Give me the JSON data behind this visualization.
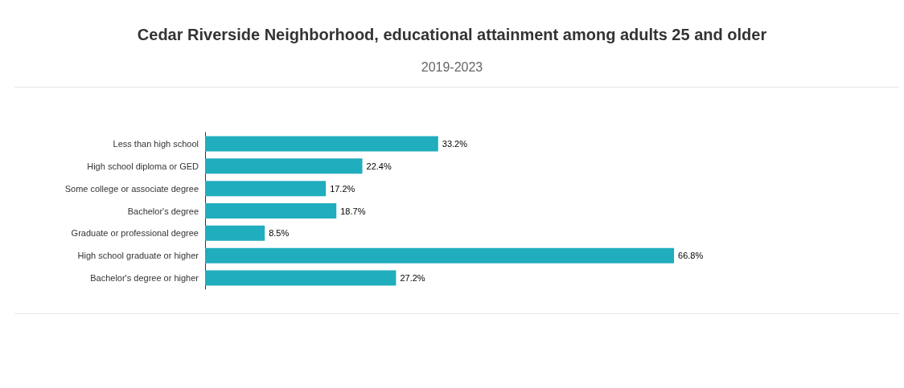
{
  "chart_data": {
    "type": "bar",
    "orientation": "horizontal",
    "title": "Cedar Riverside Neighborhood, educational attainment among adults 25 and older",
    "subtitle": "2019-2023",
    "categories": [
      "Less than high school",
      "High school diploma or GED",
      "Some college or associate degree",
      "Bachelor's degree",
      "Graduate or professional degree",
      "High school graduate or higher",
      "Bachelor's degree or higher"
    ],
    "values": [
      33.2,
      22.4,
      17.2,
      18.7,
      8.5,
      66.8,
      27.2
    ],
    "value_labels": [
      "33.2%",
      "22.4%",
      "17.2%",
      "18.7%",
      "8.5%",
      "66.8%",
      "27.2%"
    ],
    "color": "#20adbd",
    "tick_labels": "y"
  }
}
